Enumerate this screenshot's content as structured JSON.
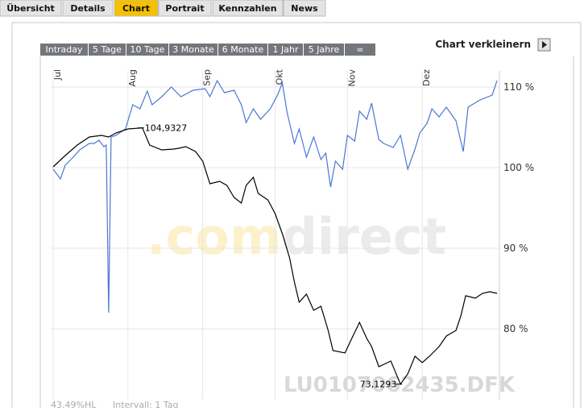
{
  "tabs": [
    "Übersicht",
    "Details",
    "Chart",
    "Portrait",
    "Kennzahlen",
    "News"
  ],
  "active_tab": 2,
  "range_tabs": [
    "Intraday",
    "5 Tage",
    "10 Tage",
    "3 Monate",
    "6 Monate",
    "1 Jahr",
    "5 Jahre",
    "∞"
  ],
  "toggle_label": "Chart verkleinern",
  "watermark": {
    "brand_a": ".com",
    "brand_b": "direct",
    "symbol": "LU0107062435.DFK"
  },
  "footer": [
    "43,49%HL",
    "Intervall: 1 Tag"
  ],
  "chart_data": {
    "type": "line",
    "grid": true,
    "xlim": [
      -1,
      185
    ],
    "ylim": [
      71.2,
      112
    ],
    "xticks": [
      {
        "value": 0,
        "label": "Jul"
      },
      {
        "value": 31,
        "label": "Aug"
      },
      {
        "value": 62,
        "label": "Sep"
      },
      {
        "value": 92,
        "label": "Okt"
      },
      {
        "value": 122,
        "label": "Nov"
      },
      {
        "value": 153,
        "label": "Dez"
      }
    ],
    "yticks": [
      {
        "value": 80,
        "label": "80 %"
      },
      {
        "value": 90,
        "label": "90 %"
      },
      {
        "value": 100,
        "label": "100 %"
      },
      {
        "value": 110,
        "label": "110 %"
      }
    ],
    "series": [
      {
        "color": "#4a77d4",
        "x": [
          0,
          3,
          5,
          8,
          11,
          15,
          17,
          19,
          21,
          22,
          23,
          24,
          26,
          30,
          33,
          36,
          39,
          41,
          45,
          49,
          53,
          58,
          63,
          65,
          68,
          71,
          75,
          78,
          80,
          83,
          86,
          90,
          93,
          95,
          97,
          100,
          102,
          105,
          108,
          111,
          113,
          115,
          117,
          120,
          122,
          125,
          127,
          130,
          132,
          135,
          137,
          141,
          144,
          147,
          150,
          152,
          155,
          157,
          160,
          163,
          167,
          170,
          172,
          177,
          182,
          184
        ],
        "values": [
          99.8,
          98.6,
          100.3,
          101.2,
          102.2,
          103.0,
          103.0,
          103.4,
          102.6,
          102.8,
          82.0,
          103.8,
          104.0,
          104.8,
          107.8,
          107.3,
          109.5,
          107.8,
          108.8,
          110.0,
          108.8,
          109.6,
          109.8,
          108.8,
          110.8,
          109.3,
          109.6,
          107.8,
          105.6,
          107.3,
          106.0,
          107.3,
          109.0,
          110.5,
          106.8,
          103.0,
          104.8,
          101.3,
          103.8,
          101.0,
          101.8,
          97.6,
          100.8,
          99.8,
          104.0,
          103.3,
          107.0,
          106.0,
          108.0,
          103.5,
          103.0,
          102.5,
          104.0,
          99.8,
          102.3,
          104.3,
          105.5,
          107.3,
          106.3,
          107.5,
          105.8,
          102.0,
          107.5,
          108.4,
          109.0,
          110.8
        ]
      },
      {
        "color": "#000000",
        "x": [
          0,
          5,
          10,
          15,
          20,
          23,
          26,
          31,
          37,
          40,
          45,
          50,
          52,
          55,
          59,
          62,
          65,
          69,
          72,
          75,
          78,
          80,
          83,
          85,
          89,
          92,
          95,
          98,
          100,
          102,
          105,
          108,
          111,
          114,
          116,
          121,
          123,
          127,
          130,
          132,
          135,
          140,
          144,
          147,
          150,
          153,
          156,
          160,
          163,
          167,
          169,
          171,
          175,
          178,
          181,
          184
        ],
        "values": [
          100.1,
          101.5,
          102.8,
          103.8,
          104.0,
          103.8,
          104.3,
          104.8,
          104.9327,
          102.8,
          102.2,
          102.3,
          102.4,
          102.6,
          102.0,
          100.8,
          98.0,
          98.3,
          97.8,
          96.3,
          95.6,
          97.8,
          98.8,
          96.8,
          96.0,
          94.3,
          91.8,
          88.8,
          85.8,
          83.3,
          84.3,
          82.3,
          82.8,
          79.8,
          77.3,
          77.0,
          78.3,
          80.8,
          78.8,
          77.8,
          75.3,
          76.0,
          73.1293,
          74.4,
          76.6,
          75.8,
          76.6,
          77.8,
          79.1,
          79.8,
          81.6,
          84.1,
          83.8,
          84.4,
          84.6,
          84.4
        ]
      }
    ],
    "annotations": [
      {
        "label": "104,9327",
        "x": 37,
        "y": 104.9327
      },
      {
        "label": "73,1293",
        "x": 144,
        "y": 73.1293
      }
    ]
  }
}
